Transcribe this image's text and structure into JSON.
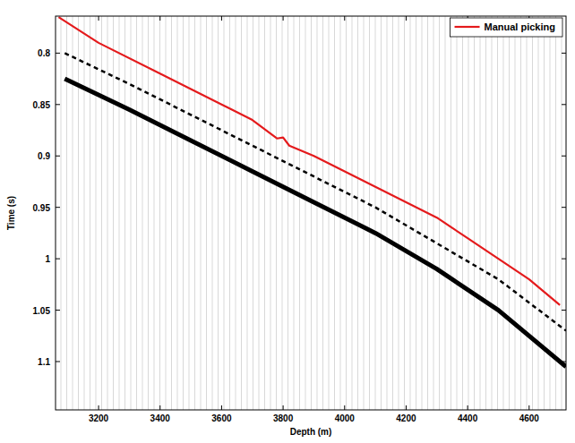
{
  "chart_data": {
    "type": "line",
    "x_label": "Depth (m)",
    "y_label": "Time (s)",
    "xlim": [
      3060,
      4720
    ],
    "xticks": [
      3200,
      3400,
      3600,
      3800,
      4000,
      4200,
      4400,
      4600
    ],
    "ylim": [
      1.147,
      0.764
    ],
    "yticks": [
      0.8,
      0.85,
      0.9,
      0.95,
      1,
      1.05,
      1.1
    ],
    "legend": "top-right",
    "series": [
      {
        "name": "Manual picking",
        "color": "#e41a1c",
        "line_style": "solid",
        "x": [
          3070,
          3200,
          3400,
          3600,
          3700,
          3780,
          3800,
          3820,
          3900,
          4000,
          4100,
          4200,
          4300,
          4400,
          4500,
          4600,
          4700
        ],
        "values": [
          0.765,
          0.79,
          0.82,
          0.85,
          0.865,
          0.883,
          0.882,
          0.89,
          0.9,
          0.915,
          0.93,
          0.945,
          0.96,
          0.98,
          1.0,
          1.02,
          1.045
        ]
      },
      {
        "color": "#000000",
        "line_style": "solid",
        "x": [
          3090,
          3300,
          3500,
          3700,
          3900,
          4100,
          4300,
          4500,
          4720
        ],
        "values": [
          0.825,
          0.855,
          0.885,
          0.915,
          0.945,
          0.975,
          1.01,
          1.05,
          1.105
        ]
      },
      {
        "color": "#000000",
        "line_style": "dashed",
        "x": [
          3090,
          3300,
          3500,
          3700,
          3900,
          4100,
          4300,
          4500,
          4720
        ],
        "values": [
          0.8,
          0.83,
          0.86,
          0.89,
          0.92,
          0.95,
          0.985,
          1.02,
          1.07
        ]
      }
    ]
  }
}
